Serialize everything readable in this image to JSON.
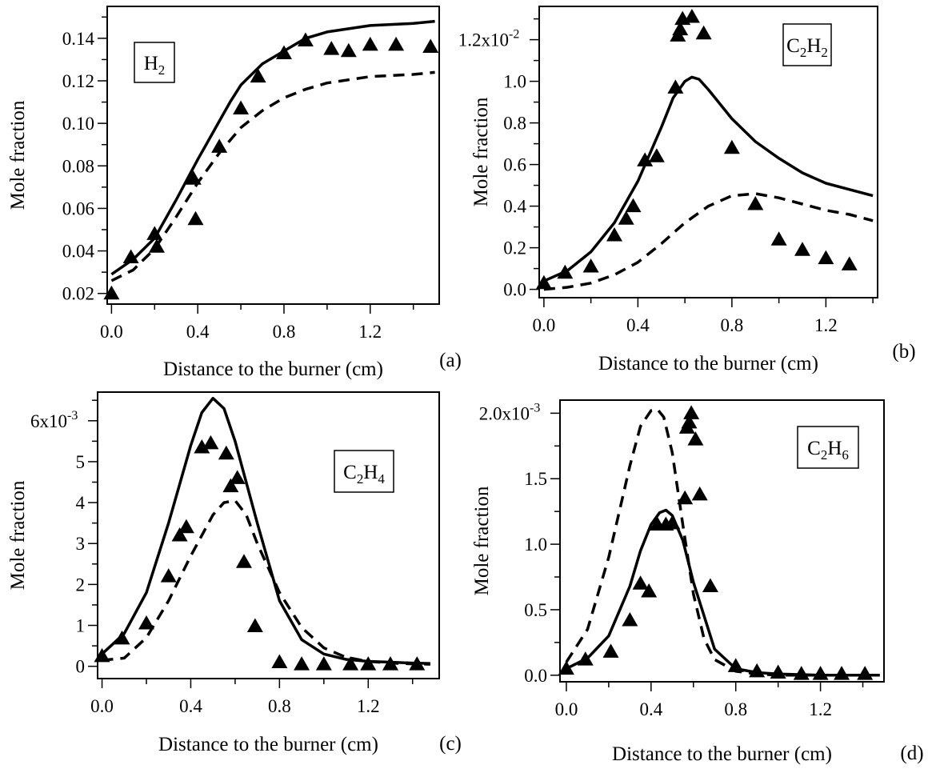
{
  "chart_data": [
    {
      "panel": "(a)",
      "type": "scatter",
      "species": {
        "base1": "H",
        "sub1": "2",
        "base2": "",
        "sub2": ""
      },
      "xlabel": "Distance to the burner (cm)",
      "ylabel": "Mole fraction",
      "xlim": [
        -0.02,
        1.52
      ],
      "ylim": [
        0.015,
        0.155
      ],
      "xticks": [
        0.0,
        0.4,
        0.8,
        1.2
      ],
      "xtick_labels": [
        "0.0",
        "0.4",
        "0.8",
        "1.2"
      ],
      "yticks": [
        0.02,
        0.04,
        0.06,
        0.08,
        0.1,
        0.12,
        0.14
      ],
      "ytick_labels": [
        "0.02",
        "0.04",
        "0.06",
        "0.08",
        "0.10",
        "0.12",
        "0.14"
      ],
      "exponent": null,
      "series": [
        {
          "style": "markers",
          "x": [
            0.0,
            0.09,
            0.2,
            0.21,
            0.38,
            0.39,
            0.5,
            0.6,
            0.68,
            0.8,
            0.9,
            1.02,
            1.1,
            1.2,
            1.32,
            1.48
          ],
          "y": [
            0.02,
            0.037,
            0.048,
            0.042,
            0.074,
            0.055,
            0.089,
            0.107,
            0.122,
            0.133,
            0.139,
            0.135,
            0.134,
            0.137,
            0.137,
            0.136
          ]
        },
        {
          "style": "solid",
          "x": [
            0.0,
            0.1,
            0.2,
            0.3,
            0.4,
            0.45,
            0.5,
            0.55,
            0.6,
            0.7,
            0.8,
            0.9,
            1.0,
            1.2,
            1.4,
            1.5
          ],
          "y": [
            0.029,
            0.036,
            0.046,
            0.064,
            0.083,
            0.092,
            0.101,
            0.11,
            0.118,
            0.128,
            0.134,
            0.14,
            0.143,
            0.146,
            0.147,
            0.148
          ]
        },
        {
          "style": "dashed",
          "x": [
            0.0,
            0.1,
            0.2,
            0.3,
            0.4,
            0.5,
            0.6,
            0.7,
            0.8,
            0.9,
            1.0,
            1.2,
            1.4,
            1.5
          ],
          "y": [
            0.026,
            0.031,
            0.041,
            0.056,
            0.072,
            0.086,
            0.098,
            0.106,
            0.112,
            0.116,
            0.119,
            0.122,
            0.123,
            0.124
          ]
        }
      ]
    },
    {
      "panel": "(b)",
      "type": "scatter",
      "species": {
        "base1": "C",
        "sub1": "2",
        "base2": "H",
        "sub2": "2"
      },
      "xlabel": "Distance to the burner (cm)",
      "ylabel": "Mole fraction",
      "xlim": [
        -0.02,
        1.42
      ],
      "ylim": [
        -0.04,
        1.36
      ],
      "xticks": [
        0.0,
        0.4,
        0.8,
        1.2
      ],
      "xtick_labels": [
        "0.0",
        "0.4",
        "0.8",
        "1.2"
      ],
      "yticks": [
        0.0,
        0.2,
        0.4,
        0.6,
        0.8,
        1.0,
        1.2
      ],
      "ytick_labels": [
        "0.0",
        "0.2",
        "0.4",
        "0.6",
        "0.8",
        "1.0",
        "1.2x10"
      ],
      "exponent": "-2",
      "series": [
        {
          "style": "markers",
          "x": [
            0.0,
            0.09,
            0.2,
            0.3,
            0.35,
            0.38,
            0.43,
            0.48,
            0.56,
            0.57,
            0.58,
            0.59,
            0.63,
            0.68,
            0.8,
            0.9,
            1.0,
            1.1,
            1.2,
            1.3
          ],
          "y": [
            0.03,
            0.08,
            0.11,
            0.26,
            0.34,
            0.4,
            0.62,
            0.64,
            0.97,
            1.22,
            1.25,
            1.3,
            1.31,
            1.23,
            0.68,
            0.41,
            0.24,
            0.19,
            0.15,
            0.12
          ]
        },
        {
          "style": "solid",
          "x": [
            0.0,
            0.1,
            0.2,
            0.3,
            0.4,
            0.5,
            0.55,
            0.6,
            0.63,
            0.66,
            0.7,
            0.8,
            0.9,
            1.0,
            1.1,
            1.2,
            1.3,
            1.4
          ],
          "y": [
            0.04,
            0.09,
            0.18,
            0.32,
            0.52,
            0.78,
            0.92,
            1.0,
            1.02,
            1.01,
            0.96,
            0.82,
            0.71,
            0.63,
            0.56,
            0.51,
            0.48,
            0.45
          ]
        },
        {
          "style": "dashed",
          "x": [
            0.0,
            0.1,
            0.2,
            0.3,
            0.4,
            0.5,
            0.6,
            0.7,
            0.8,
            0.9,
            1.0,
            1.1,
            1.2,
            1.3,
            1.4
          ],
          "y": [
            0.0,
            0.01,
            0.03,
            0.07,
            0.13,
            0.22,
            0.32,
            0.4,
            0.45,
            0.46,
            0.44,
            0.41,
            0.38,
            0.36,
            0.33
          ]
        }
      ]
    },
    {
      "panel": "(c)",
      "type": "scatter",
      "species": {
        "base1": "C",
        "sub1": "2",
        "base2": "H",
        "sub2": "4"
      },
      "xlabel": "Distance to the burner (cm)",
      "ylabel": "Mole fraction",
      "xlim": [
        -0.02,
        1.52
      ],
      "ylim": [
        -0.3,
        6.7
      ],
      "xticks": [
        0.0,
        0.4,
        0.8,
        1.2
      ],
      "xtick_labels": [
        "0.0",
        "0.4",
        "0.8",
        "1.2"
      ],
      "yticks": [
        0,
        1,
        2,
        3,
        4,
        5,
        6
      ],
      "ytick_labels": [
        "0",
        "1",
        "2",
        "3",
        "4",
        "5",
        "6x10"
      ],
      "exponent": "-3",
      "series": [
        {
          "style": "markers",
          "x": [
            0.0,
            0.09,
            0.2,
            0.3,
            0.35,
            0.38,
            0.45,
            0.49,
            0.56,
            0.58,
            0.61,
            0.64,
            0.69,
            0.8,
            0.9,
            1.0,
            1.12,
            1.2,
            1.3,
            1.42
          ],
          "y": [
            0.25,
            0.68,
            1.05,
            2.2,
            3.2,
            3.4,
            5.35,
            5.45,
            5.2,
            4.4,
            4.6,
            2.55,
            0.98,
            0.1,
            0.05,
            0.05,
            0.05,
            0.05,
            0.05,
            0.05
          ]
        },
        {
          "style": "solid",
          "x": [
            0.0,
            0.1,
            0.2,
            0.3,
            0.4,
            0.45,
            0.5,
            0.55,
            0.6,
            0.7,
            0.8,
            0.9,
            1.0,
            1.1,
            1.2,
            1.3,
            1.4,
            1.48
          ],
          "y": [
            0.3,
            0.8,
            1.8,
            3.5,
            5.4,
            6.2,
            6.55,
            6.3,
            5.5,
            3.5,
            1.6,
            0.65,
            0.3,
            0.17,
            0.12,
            0.1,
            0.08,
            0.07
          ]
        },
        {
          "style": "dashed",
          "x": [
            0.0,
            0.1,
            0.2,
            0.3,
            0.4,
            0.5,
            0.55,
            0.6,
            0.65,
            0.7,
            0.8,
            0.9,
            1.0,
            1.1,
            1.2,
            1.3,
            1.4,
            1.48
          ],
          "y": [
            0.15,
            0.2,
            0.7,
            1.6,
            2.7,
            3.7,
            4.0,
            4.05,
            3.7,
            3.0,
            1.8,
            0.95,
            0.45,
            0.22,
            0.12,
            0.08,
            0.06,
            0.05
          ]
        }
      ]
    },
    {
      "panel": "(d)",
      "type": "scatter",
      "species": {
        "base1": "C",
        "sub1": "2",
        "base2": "H",
        "sub2": "6"
      },
      "xlabel": "Distance to the burner (cm)",
      "ylabel": "Mole fraction",
      "xlim": [
        -0.03,
        1.5
      ],
      "ylim": [
        -0.05,
        2.1
      ],
      "xticks": [
        0.0,
        0.4,
        0.8,
        1.2
      ],
      "xtick_labels": [
        "0.0",
        "0.4",
        "0.8",
        "1.2"
      ],
      "yticks": [
        0.0,
        0.5,
        1.0,
        1.5,
        2.0
      ],
      "ytick_labels": [
        "0.0",
        "0.5",
        "1.0",
        "1.5",
        "2.0x10"
      ],
      "exponent": "-3",
      "series": [
        {
          "style": "markers",
          "x": [
            0.0,
            0.09,
            0.21,
            0.3,
            0.35,
            0.39,
            0.43,
            0.47,
            0.5,
            0.56,
            0.57,
            0.58,
            0.59,
            0.61,
            0.63,
            0.68,
            0.8,
            0.9,
            1.0,
            1.11,
            1.2,
            1.3,
            1.41
          ],
          "y": [
            0.05,
            0.12,
            0.18,
            0.42,
            0.7,
            0.64,
            1.15,
            1.15,
            1.16,
            1.35,
            1.89,
            1.93,
            2.0,
            1.8,
            1.38,
            0.68,
            0.07,
            0.03,
            0.02,
            0.01,
            0.01,
            0.01,
            0.01
          ]
        },
        {
          "style": "solid",
          "x": [
            0.0,
            0.1,
            0.2,
            0.3,
            0.35,
            0.4,
            0.44,
            0.47,
            0.5,
            0.55,
            0.6,
            0.7,
            0.8,
            0.9,
            1.0,
            1.2,
            1.4,
            1.48
          ],
          "y": [
            0.05,
            0.13,
            0.3,
            0.68,
            0.95,
            1.15,
            1.24,
            1.26,
            1.22,
            1.03,
            0.71,
            0.2,
            0.05,
            0.02,
            0.01,
            0.0,
            0.0,
            0.0
          ]
        },
        {
          "style": "dashed",
          "x": [
            0.0,
            0.1,
            0.2,
            0.3,
            0.35,
            0.4,
            0.43,
            0.46,
            0.5,
            0.55,
            0.6,
            0.65,
            0.7,
            0.8,
            0.9,
            1.0,
            1.2,
            1.48
          ],
          "y": [
            0.1,
            0.35,
            0.9,
            1.6,
            1.9,
            2.02,
            2.03,
            1.97,
            1.7,
            1.15,
            0.62,
            0.28,
            0.12,
            0.03,
            0.01,
            0.0,
            0.0,
            0.0
          ]
        }
      ]
    }
  ]
}
